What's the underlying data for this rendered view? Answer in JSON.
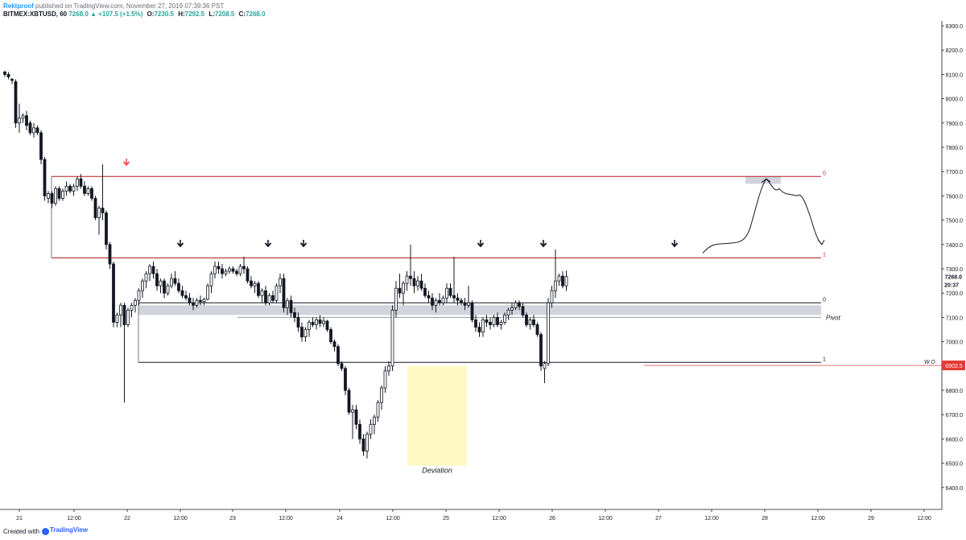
{
  "header": {
    "author": "Rektproof",
    "published": "published on TradingView.com, November 27, 2019 07:39:36 PST",
    "symbol": "BITMEX:XBTUSD, 60",
    "last": "7268.0",
    "change": "▲ +107.5 (+1.5%)",
    "o_label": "O:",
    "o_value": "7230.5",
    "h_label": "H:",
    "h_value": "7292.5",
    "l_label": "L:",
    "l_value": "7208.5",
    "c_label": "C:",
    "c_value": "7268.0"
  },
  "footer": {
    "created": "Created with",
    "brand": "TradingView"
  },
  "colors": {
    "resistance": "#b71c1c",
    "support": "#131722",
    "zone": "#d1d4dc",
    "highlight": "#fff9c4",
    "marker_red": "#ef5350",
    "text_red": "#c62828"
  },
  "chart_data": {
    "type": "candlestick",
    "title": "",
    "xlabel": "",
    "ylabel": "",
    "ylim": [
      6310,
      8320
    ],
    "yticks": [
      6400,
      6500,
      6600,
      6700,
      6800,
      6900,
      7000,
      7100,
      7200,
      7300,
      7400,
      7500,
      7600,
      7700,
      7800,
      7900,
      8000,
      8100,
      8200,
      8300
    ],
    "x_tick_labels": [
      "21",
      "12:00",
      "22",
      "12:00",
      "23",
      "12:00",
      "24",
      "12:00",
      "25",
      "12:00",
      "26",
      "12:00",
      "27",
      "12:00",
      "28",
      "12:00",
      "29",
      "12:00"
    ],
    "grid": false,
    "current_price_label": "7268.0",
    "countdown_label": "20:37",
    "wo_price_label": "6902.5",
    "candles": [
      {
        "o": 8110,
        "h": 8115,
        "l": 8090,
        "c": 8100
      },
      {
        "o": 8100,
        "h": 8110,
        "l": 8080,
        "c": 8090
      },
      {
        "o": 8080,
        "h": 8085,
        "l": 8060,
        "c": 8075
      },
      {
        "o": 8070,
        "h": 8080,
        "l": 7880,
        "c": 7900
      },
      {
        "o": 7900,
        "h": 7980,
        "l": 7860,
        "c": 7920
      },
      {
        "o": 7920,
        "h": 7940,
        "l": 7900,
        "c": 7930
      },
      {
        "o": 7930,
        "h": 7950,
        "l": 7870,
        "c": 7890
      },
      {
        "o": 7900,
        "h": 7910,
        "l": 7850,
        "c": 7860
      },
      {
        "o": 7860,
        "h": 7900,
        "l": 7840,
        "c": 7880
      },
      {
        "o": 7880,
        "h": 7890,
        "l": 7850,
        "c": 7860
      },
      {
        "o": 7860,
        "h": 7870,
        "l": 7730,
        "c": 7750
      },
      {
        "o": 7750,
        "h": 7760,
        "l": 7580,
        "c": 7600
      },
      {
        "o": 7590,
        "h": 7620,
        "l": 7570,
        "c": 7610
      },
      {
        "o": 7610,
        "h": 7620,
        "l": 7550,
        "c": 7570
      },
      {
        "o": 7570,
        "h": 7640,
        "l": 7560,
        "c": 7630
      },
      {
        "o": 7630,
        "h": 7640,
        "l": 7580,
        "c": 7590
      },
      {
        "o": 7590,
        "h": 7630,
        "l": 7580,
        "c": 7620
      },
      {
        "o": 7620,
        "h": 7660,
        "l": 7600,
        "c": 7640
      },
      {
        "o": 7640,
        "h": 7650,
        "l": 7610,
        "c": 7620
      },
      {
        "o": 7620,
        "h": 7650,
        "l": 7600,
        "c": 7640
      },
      {
        "o": 7640,
        "h": 7680,
        "l": 7620,
        "c": 7670
      },
      {
        "o": 7670,
        "h": 7690,
        "l": 7630,
        "c": 7640
      },
      {
        "o": 7640,
        "h": 7660,
        "l": 7600,
        "c": 7610
      },
      {
        "o": 7610,
        "h": 7640,
        "l": 7600,
        "c": 7630
      },
      {
        "o": 7630,
        "h": 7640,
        "l": 7580,
        "c": 7590
      },
      {
        "o": 7590,
        "h": 7600,
        "l": 7500,
        "c": 7510
      },
      {
        "o": 7510,
        "h": 7560,
        "l": 7440,
        "c": 7550
      },
      {
        "o": 7550,
        "h": 7730,
        "l": 7500,
        "c": 7530
      },
      {
        "o": 7530,
        "h": 7540,
        "l": 7380,
        "c": 7400
      },
      {
        "o": 7400,
        "h": 7410,
        "l": 7300,
        "c": 7320
      },
      {
        "o": 7320,
        "h": 7330,
        "l": 7060,
        "c": 7080
      },
      {
        "o": 7080,
        "h": 7120,
        "l": 7060,
        "c": 7110
      },
      {
        "o": 7110,
        "h": 7160,
        "l": 7060,
        "c": 7150
      },
      {
        "o": 7150,
        "h": 7160,
        "l": 6750,
        "c": 7070
      },
      {
        "o": 7070,
        "h": 7140,
        "l": 7060,
        "c": 7130
      },
      {
        "o": 7130,
        "h": 7160,
        "l": 7100,
        "c": 7150
      },
      {
        "o": 7150,
        "h": 7180,
        "l": 7120,
        "c": 7170
      },
      {
        "o": 7170,
        "h": 7220,
        "l": 7150,
        "c": 7210
      },
      {
        "o": 7210,
        "h": 7260,
        "l": 7180,
        "c": 7250
      },
      {
        "o": 7250,
        "h": 7290,
        "l": 7220,
        "c": 7280
      },
      {
        "o": 7280,
        "h": 7320,
        "l": 7250,
        "c": 7310
      },
      {
        "o": 7310,
        "h": 7330,
        "l": 7260,
        "c": 7280
      },
      {
        "o": 7280,
        "h": 7300,
        "l": 7210,
        "c": 7230
      },
      {
        "o": 7230,
        "h": 7260,
        "l": 7200,
        "c": 7250
      },
      {
        "o": 7250,
        "h": 7260,
        "l": 7180,
        "c": 7200
      },
      {
        "o": 7200,
        "h": 7240,
        "l": 7190,
        "c": 7230
      },
      {
        "o": 7230,
        "h": 7280,
        "l": 7220,
        "c": 7260
      },
      {
        "o": 7260,
        "h": 7290,
        "l": 7230,
        "c": 7240
      },
      {
        "o": 7240,
        "h": 7260,
        "l": 7200,
        "c": 7210
      },
      {
        "o": 7210,
        "h": 7230,
        "l": 7180,
        "c": 7190
      },
      {
        "o": 7190,
        "h": 7210,
        "l": 7170,
        "c": 7180
      },
      {
        "o": 7180,
        "h": 7200,
        "l": 7150,
        "c": 7160
      },
      {
        "o": 7160,
        "h": 7180,
        "l": 7130,
        "c": 7150
      },
      {
        "o": 7150,
        "h": 7180,
        "l": 7140,
        "c": 7170
      },
      {
        "o": 7170,
        "h": 7190,
        "l": 7150,
        "c": 7165
      },
      {
        "o": 7165,
        "h": 7180,
        "l": 7150,
        "c": 7175
      },
      {
        "o": 7175,
        "h": 7240,
        "l": 7170,
        "c": 7230
      },
      {
        "o": 7230,
        "h": 7290,
        "l": 7200,
        "c": 7280
      },
      {
        "o": 7280,
        "h": 7330,
        "l": 7260,
        "c": 7310
      },
      {
        "o": 7310,
        "h": 7330,
        "l": 7280,
        "c": 7300
      },
      {
        "o": 7300,
        "h": 7320,
        "l": 7260,
        "c": 7280
      },
      {
        "o": 7280,
        "h": 7300,
        "l": 7270,
        "c": 7290
      },
      {
        "o": 7290,
        "h": 7310,
        "l": 7280,
        "c": 7300
      },
      {
        "o": 7300,
        "h": 7310,
        "l": 7280,
        "c": 7290
      },
      {
        "o": 7290,
        "h": 7300,
        "l": 7270,
        "c": 7280
      },
      {
        "o": 7280,
        "h": 7320,
        "l": 7270,
        "c": 7310
      },
      {
        "o": 7310,
        "h": 7350,
        "l": 7280,
        "c": 7300
      },
      {
        "o": 7300,
        "h": 7310,
        "l": 7240,
        "c": 7250
      },
      {
        "o": 7250,
        "h": 7270,
        "l": 7220,
        "c": 7230
      },
      {
        "o": 7230,
        "h": 7250,
        "l": 7200,
        "c": 7240
      },
      {
        "o": 7240,
        "h": 7250,
        "l": 7180,
        "c": 7190
      },
      {
        "o": 7190,
        "h": 7220,
        "l": 7160,
        "c": 7210
      },
      {
        "o": 7210,
        "h": 7230,
        "l": 7150,
        "c": 7160
      },
      {
        "o": 7160,
        "h": 7200,
        "l": 7150,
        "c": 7190
      },
      {
        "o": 7190,
        "h": 7210,
        "l": 7160,
        "c": 7170
      },
      {
        "o": 7170,
        "h": 7240,
        "l": 7160,
        "c": 7230
      },
      {
        "o": 7230,
        "h": 7280,
        "l": 7200,
        "c": 7260
      },
      {
        "o": 7260,
        "h": 7280,
        "l": 7120,
        "c": 7140
      },
      {
        "o": 7140,
        "h": 7180,
        "l": 7110,
        "c": 7170
      },
      {
        "o": 7170,
        "h": 7190,
        "l": 7100,
        "c": 7120
      },
      {
        "o": 7120,
        "h": 7140,
        "l": 7080,
        "c": 7100
      },
      {
        "o": 7100,
        "h": 7120,
        "l": 7040,
        "c": 7060
      },
      {
        "o": 7060,
        "h": 7080,
        "l": 7000,
        "c": 7020
      },
      {
        "o": 7020,
        "h": 7060,
        "l": 7000,
        "c": 7050
      },
      {
        "o": 7050,
        "h": 7090,
        "l": 7020,
        "c": 7080
      },
      {
        "o": 7080,
        "h": 7100,
        "l": 7060,
        "c": 7070
      },
      {
        "o": 7070,
        "h": 7100,
        "l": 7050,
        "c": 7090
      },
      {
        "o": 7090,
        "h": 7110,
        "l": 7060,
        "c": 7075
      },
      {
        "o": 7075,
        "h": 7100,
        "l": 7060,
        "c": 7085
      },
      {
        "o": 7085,
        "h": 7090,
        "l": 7040,
        "c": 7050
      },
      {
        "o": 7050,
        "h": 7060,
        "l": 6990,
        "c": 7000
      },
      {
        "o": 7000,
        "h": 7010,
        "l": 6960,
        "c": 6980
      },
      {
        "o": 6980,
        "h": 6990,
        "l": 6900,
        "c": 6910
      },
      {
        "o": 6910,
        "h": 6920,
        "l": 6880,
        "c": 6890
      },
      {
        "o": 6890,
        "h": 6900,
        "l": 6780,
        "c": 6800
      },
      {
        "o": 6800,
        "h": 6810,
        "l": 6700,
        "c": 6710
      },
      {
        "o": 6710,
        "h": 6740,
        "l": 6600,
        "c": 6720
      },
      {
        "o": 6720,
        "h": 6740,
        "l": 6640,
        "c": 6660
      },
      {
        "o": 6660,
        "h": 6680,
        "l": 6580,
        "c": 6600
      },
      {
        "o": 6600,
        "h": 6620,
        "l": 6530,
        "c": 6550
      },
      {
        "o": 6550,
        "h": 6630,
        "l": 6520,
        "c": 6620
      },
      {
        "o": 6620,
        "h": 6680,
        "l": 6600,
        "c": 6660
      },
      {
        "o": 6660,
        "h": 6700,
        "l": 6620,
        "c": 6690
      },
      {
        "o": 6690,
        "h": 6760,
        "l": 6670,
        "c": 6750
      },
      {
        "o": 6750,
        "h": 6820,
        "l": 6720,
        "c": 6810
      },
      {
        "o": 6810,
        "h": 6900,
        "l": 6790,
        "c": 6880
      },
      {
        "o": 6880,
        "h": 6920,
        "l": 6860,
        "c": 6900
      },
      {
        "o": 6900,
        "h": 7150,
        "l": 6880,
        "c": 7130
      },
      {
        "o": 7130,
        "h": 7250,
        "l": 7100,
        "c": 7220
      },
      {
        "o": 7220,
        "h": 7280,
        "l": 7180,
        "c": 7200
      },
      {
        "o": 7200,
        "h": 7250,
        "l": 7150,
        "c": 7240
      },
      {
        "o": 7240,
        "h": 7290,
        "l": 7210,
        "c": 7270
      },
      {
        "o": 7270,
        "h": 7400,
        "l": 7230,
        "c": 7260
      },
      {
        "o": 7260,
        "h": 7290,
        "l": 7200,
        "c": 7230
      },
      {
        "o": 7230,
        "h": 7270,
        "l": 7210,
        "c": 7250
      },
      {
        "o": 7250,
        "h": 7280,
        "l": 7210,
        "c": 7220
      },
      {
        "o": 7220,
        "h": 7240,
        "l": 7180,
        "c": 7190
      },
      {
        "o": 7190,
        "h": 7210,
        "l": 7160,
        "c": 7180
      },
      {
        "o": 7180,
        "h": 7200,
        "l": 7130,
        "c": 7150
      },
      {
        "o": 7150,
        "h": 7180,
        "l": 7120,
        "c": 7170
      },
      {
        "o": 7170,
        "h": 7200,
        "l": 7150,
        "c": 7160
      },
      {
        "o": 7160,
        "h": 7190,
        "l": 7150,
        "c": 7180
      },
      {
        "o": 7180,
        "h": 7240,
        "l": 7160,
        "c": 7220
      },
      {
        "o": 7220,
        "h": 7240,
        "l": 7180,
        "c": 7190
      },
      {
        "o": 7190,
        "h": 7350,
        "l": 7160,
        "c": 7180
      },
      {
        "o": 7180,
        "h": 7200,
        "l": 7150,
        "c": 7170
      },
      {
        "o": 7170,
        "h": 7180,
        "l": 7150,
        "c": 7160
      },
      {
        "o": 7160,
        "h": 7180,
        "l": 7130,
        "c": 7150
      },
      {
        "o": 7150,
        "h": 7230,
        "l": 7140,
        "c": 7160
      },
      {
        "o": 7160,
        "h": 7170,
        "l": 7080,
        "c": 7090
      },
      {
        "o": 7090,
        "h": 7110,
        "l": 7040,
        "c": 7060
      },
      {
        "o": 7060,
        "h": 7080,
        "l": 7020,
        "c": 7040
      },
      {
        "o": 7040,
        "h": 7100,
        "l": 7020,
        "c": 7090
      },
      {
        "o": 7090,
        "h": 7110,
        "l": 7060,
        "c": 7080
      },
      {
        "o": 7080,
        "h": 7100,
        "l": 7050,
        "c": 7070
      },
      {
        "o": 7070,
        "h": 7110,
        "l": 7060,
        "c": 7100
      },
      {
        "o": 7100,
        "h": 7120,
        "l": 7060,
        "c": 7070
      },
      {
        "o": 7070,
        "h": 7090,
        "l": 7050,
        "c": 7080
      },
      {
        "o": 7080,
        "h": 7120,
        "l": 7070,
        "c": 7110
      },
      {
        "o": 7110,
        "h": 7140,
        "l": 7090,
        "c": 7130
      },
      {
        "o": 7130,
        "h": 7160,
        "l": 7110,
        "c": 7140
      },
      {
        "o": 7140,
        "h": 7170,
        "l": 7130,
        "c": 7160
      },
      {
        "o": 7160,
        "h": 7170,
        "l": 7130,
        "c": 7145
      },
      {
        "o": 7145,
        "h": 7160,
        "l": 7100,
        "c": 7110
      },
      {
        "o": 7110,
        "h": 7120,
        "l": 7060,
        "c": 7070
      },
      {
        "o": 7070,
        "h": 7100,
        "l": 7050,
        "c": 7090
      },
      {
        "o": 7090,
        "h": 7110,
        "l": 7060,
        "c": 7070
      },
      {
        "o": 7070,
        "h": 7080,
        "l": 7020,
        "c": 7030
      },
      {
        "o": 7030,
        "h": 7040,
        "l": 6880,
        "c": 6900
      },
      {
        "o": 6890,
        "h": 6920,
        "l": 6830,
        "c": 6910
      },
      {
        "o": 6910,
        "h": 7180,
        "l": 6900,
        "c": 7160
      },
      {
        "o": 7160,
        "h": 7230,
        "l": 7140,
        "c": 7210
      },
      {
        "o": 7210,
        "h": 7380,
        "l": 7180,
        "c": 7250
      },
      {
        "o": 7250,
        "h": 7280,
        "l": 7230,
        "c": 7270
      },
      {
        "o": 7270,
        "h": 7290,
        "l": 7220,
        "c": 7230
      },
      {
        "o": 7230,
        "h": 7292.5,
        "l": 7208.5,
        "c": 7268
      }
    ],
    "annotations": {
      "resistance_label_top": "0",
      "resistance_label_bottom": "1",
      "support_label_top": "0",
      "support_label_bottom": "1",
      "pivot_label": "Pivot",
      "wo_label": "W.O",
      "deviation_label": "Deviation",
      "resistance_levels": [
        7680,
        7345
      ],
      "support_levels": [
        7160,
        6915
      ],
      "wo_level": 6902.5,
      "pivot_zone": [
        7110,
        7150
      ],
      "target_zone": [
        7650,
        7680
      ]
    }
  }
}
